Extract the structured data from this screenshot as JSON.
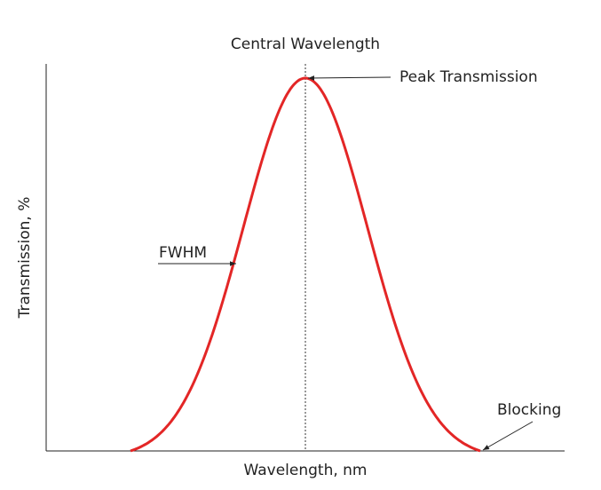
{
  "diagram": {
    "labels": {
      "central": "Central Wavelength",
      "peak": "Peak Transmission",
      "fwhm": "FWHM",
      "blocking": "Blocking"
    },
    "axes": {
      "y_label": "Transmission, %",
      "x_label": "Wavelength, nm"
    }
  }
}
